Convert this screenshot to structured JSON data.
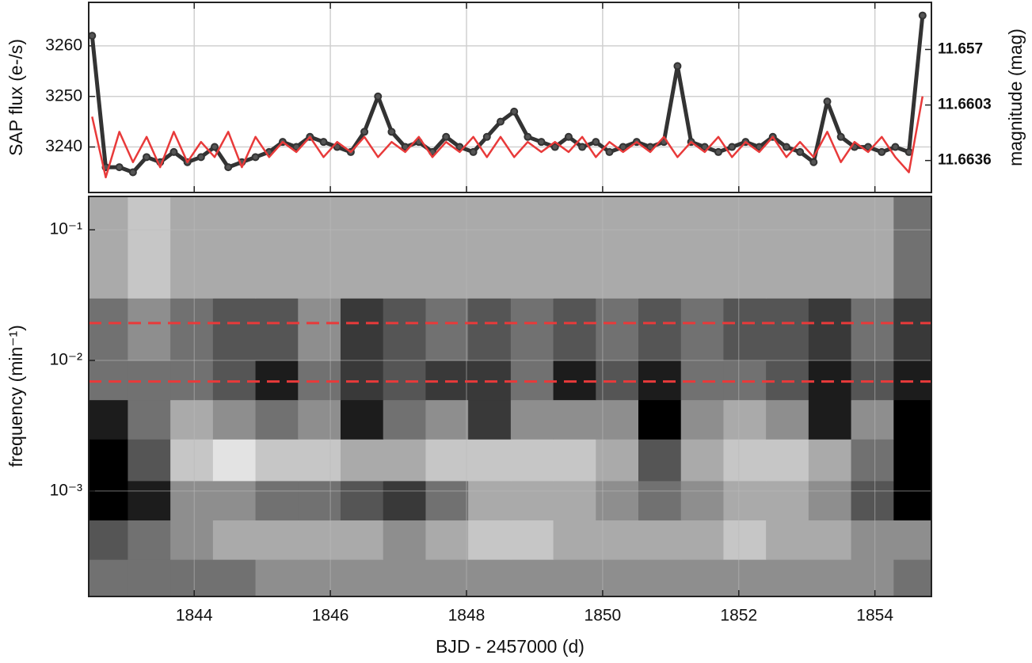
{
  "chart_data": [
    {
      "type": "line",
      "ylabel": "SAP flux (e-/s)",
      "y2label": "magnitude (mag)",
      "xlim": [
        1842.45,
        1854.83
      ],
      "ylim": [
        3231,
        3268.6
      ],
      "yticks": [
        3240,
        3250,
        3260
      ],
      "y2lim": [
        11.6655,
        11.6542
      ],
      "y2ticks": [
        11.657,
        11.6603,
        11.6636
      ],
      "grid": true,
      "x": [
        1842.5,
        1842.7,
        1842.9,
        1843.1,
        1843.3,
        1843.5,
        1843.7,
        1843.9,
        1844.1,
        1844.3,
        1844.5,
        1844.7,
        1844.9,
        1845.1,
        1845.3,
        1845.5,
        1845.7,
        1845.9,
        1846.1,
        1846.3,
        1846.5,
        1846.7,
        1846.9,
        1847.1,
        1847.3,
        1847.5,
        1847.7,
        1847.9,
        1848.1,
        1848.3,
        1848.5,
        1848.7,
        1848.9,
        1849.1,
        1849.3,
        1849.5,
        1849.7,
        1849.9,
        1850.1,
        1850.3,
        1850.5,
        1850.7,
        1850.9,
        1851.1,
        1851.3,
        1851.5,
        1851.7,
        1851.9,
        1852.1,
        1852.3,
        1852.5,
        1852.7,
        1852.9,
        1853.1,
        1853.3,
        1853.5,
        1853.7,
        1853.9,
        1854.1,
        1854.3,
        1854.5,
        1854.7
      ],
      "series": [
        {
          "color": "#333333",
          "marker": true,
          "values": [
            3262,
            3236,
            3236,
            3235,
            3238,
            3237,
            3239,
            3237,
            3238,
            3240,
            3236,
            3237,
            3238,
            3239,
            3241,
            3240,
            3242,
            3241,
            3240,
            3239,
            3243,
            3250,
            3243,
            3240,
            3241,
            3239,
            3242,
            3240,
            3239,
            3242,
            3245,
            3247,
            3242,
            3241,
            3240,
            3242,
            3240,
            3241,
            3239,
            3240,
            3241,
            3240,
            3241,
            3256,
            3241,
            3240,
            3239,
            3240,
            3241,
            3240,
            3242,
            3240,
            3239,
            3237,
            3249,
            3242,
            3240,
            3240,
            3239,
            3240,
            3239,
            3266
          ]
        },
        {
          "color": "#e83a3a",
          "marker": false,
          "values": [
            3246,
            3234,
            3243,
            3237,
            3242,
            3236,
            3243,
            3237,
            3241,
            3238,
            3243,
            3236,
            3242,
            3238,
            3241,
            3239,
            3242,
            3238,
            3241,
            3239,
            3242,
            3238,
            3241,
            3239,
            3242,
            3238,
            3241,
            3239,
            3242,
            3238,
            3242,
            3238,
            3241,
            3239,
            3241,
            3239,
            3242,
            3238,
            3241,
            3239,
            3241,
            3239,
            3242,
            3238,
            3241,
            3239,
            3242,
            3238,
            3241,
            3239,
            3242,
            3238,
            3241,
            3238,
            3243,
            3237,
            3241,
            3239,
            3242,
            3238,
            3235,
            3250
          ]
        }
      ]
    },
    {
      "type": "heatmap",
      "ylabel": "frequency  (min⁻¹)",
      "xlabel": "BJD - 2457000 (d)",
      "xlim": [
        1842.45,
        1854.83
      ],
      "xticks": [
        1844,
        1846,
        1848,
        1850,
        1852,
        1854
      ],
      "ylim": [
        0.000156,
        0.18
      ],
      "log_y": true,
      "yticks": [
        {
          "value": 0.001,
          "label": "10⁻³"
        },
        {
          "value": 0.01,
          "label": "10⁻²"
        },
        {
          "value": 0.1,
          "label": "10⁻¹"
        }
      ],
      "grid": true,
      "xbins": [
        1842.4,
        1843.025,
        1843.65,
        1844.275,
        1844.9,
        1845.525,
        1846.15,
        1846.775,
        1847.4,
        1848.025,
        1848.65,
        1849.275,
        1849.9,
        1850.525,
        1851.15,
        1851.775,
        1852.4,
        1853.025,
        1853.65,
        1854.275,
        1854.9
      ],
      "ybins": [
        0.00015,
        0.0003,
        0.0006,
        0.0012,
        0.0025,
        0.005,
        0.01,
        0.03,
        0.18
      ],
      "z": [
        [
          5,
          5,
          5,
          5,
          4,
          4,
          4,
          4,
          4,
          4,
          4,
          4,
          4,
          4,
          4,
          4,
          4,
          4,
          4,
          5
        ],
        [
          6,
          5,
          4,
          3,
          3,
          3,
          3,
          4,
          3,
          2,
          2,
          3,
          3,
          3,
          3,
          2,
          3,
          3,
          4,
          4
        ],
        [
          9,
          8,
          4,
          4,
          5,
          5,
          6,
          7,
          5,
          3,
          3,
          3,
          4,
          5,
          4,
          3,
          3,
          4,
          6,
          9
        ],
        [
          9,
          6,
          2,
          1,
          2,
          2,
          3,
          3,
          2,
          2,
          2,
          2,
          3,
          6,
          3,
          2,
          2,
          3,
          5,
          9
        ],
        [
          8,
          5,
          3,
          4,
          5,
          4,
          8,
          5,
          4,
          7,
          4,
          4,
          4,
          9,
          4,
          3,
          4,
          8,
          4,
          9
        ],
        [
          5,
          5,
          5,
          6,
          8,
          5,
          7,
          6,
          7,
          7,
          5,
          8,
          6,
          8,
          5,
          5,
          6,
          8,
          6,
          8
        ],
        [
          5,
          4,
          5,
          6,
          6,
          4,
          7,
          6,
          5,
          6,
          5,
          6,
          5,
          6,
          5,
          6,
          6,
          7,
          5,
          7
        ],
        [
          3,
          2,
          3,
          3,
          3,
          3,
          3,
          3,
          3,
          3,
          3,
          3,
          3,
          3,
          3,
          3,
          3,
          3,
          3,
          5
        ]
      ],
      "hlines": [
        {
          "value": 0.0193,
          "color": "#e83a3a"
        },
        {
          "value": 0.0069,
          "color": "#e83a3a"
        }
      ]
    }
  ]
}
